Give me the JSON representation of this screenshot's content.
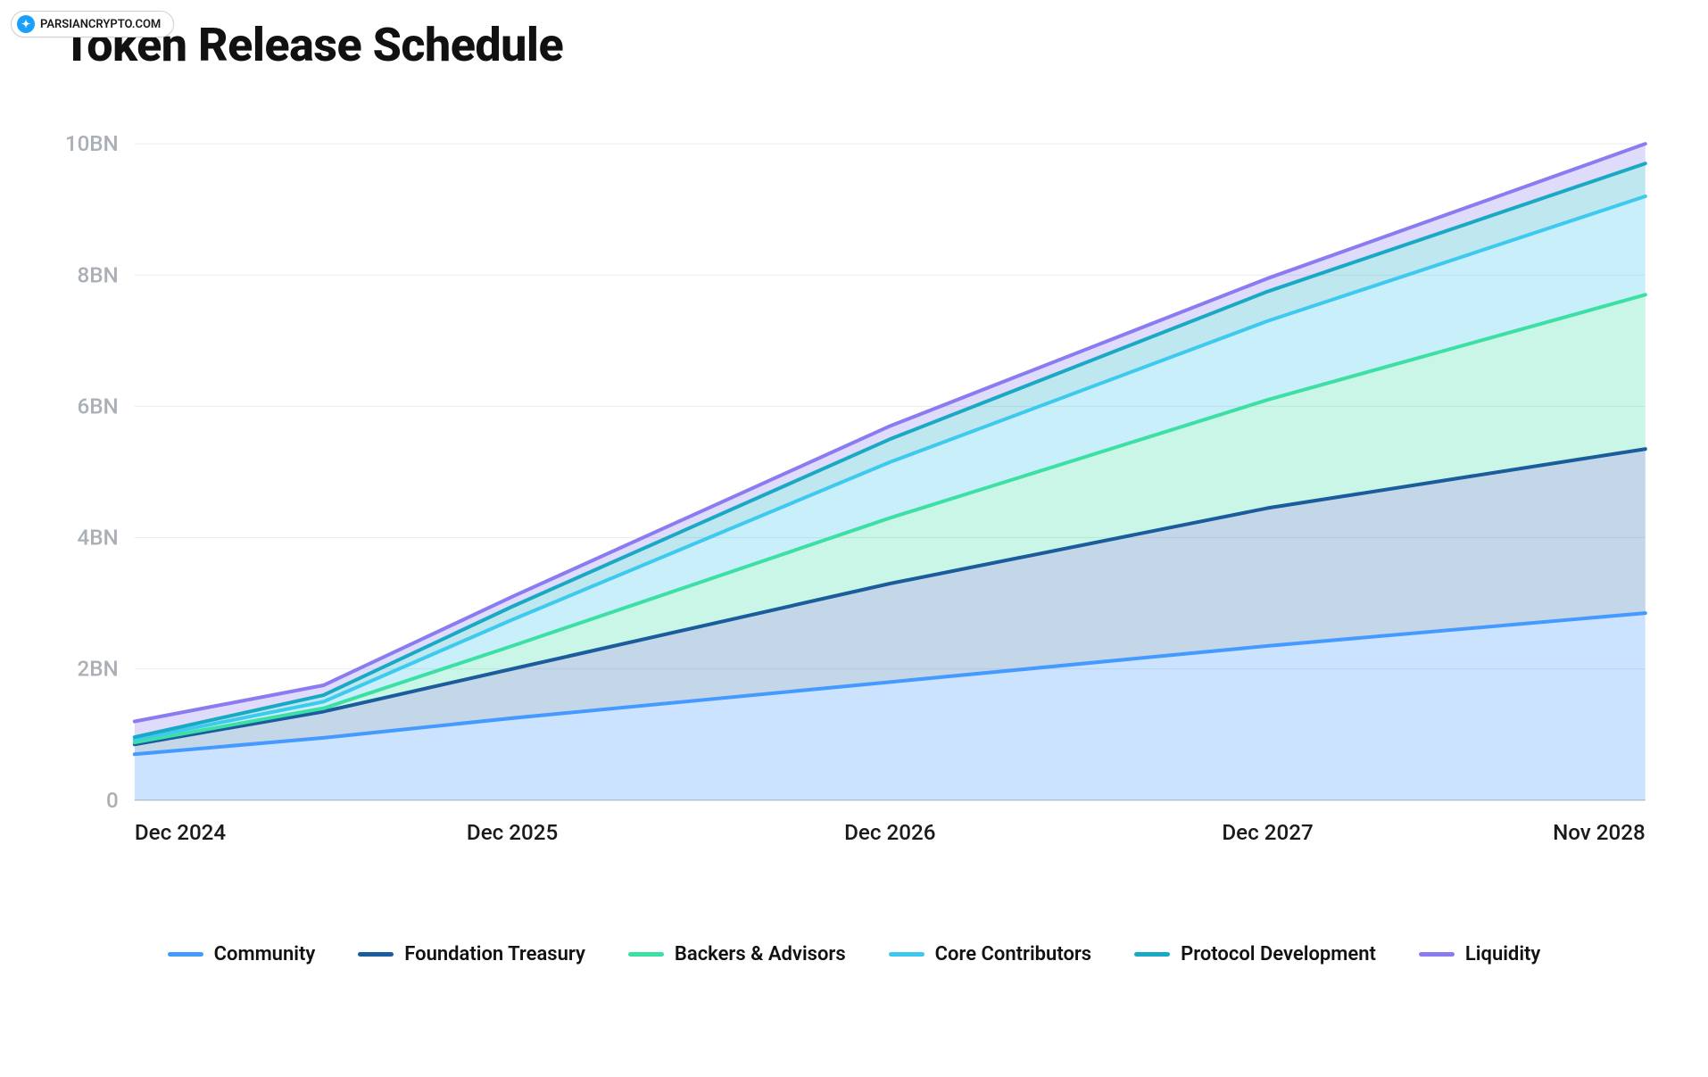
{
  "watermark": {
    "text": "PARSIANCRYPTO.COM",
    "icon_bg": "#18a0fb",
    "icon_glyph": "✦"
  },
  "chart": {
    "type": "area-stacked",
    "title": "Token Release Schedule",
    "title_fontsize": 52,
    "title_fontweight": 800,
    "background_color": "#ffffff",
    "grid_color": "#e9ecef",
    "zero_line_color": "#b0b5ba",
    "y_label_color": "#aab0b6",
    "x_label_color": "#1a1a1a",
    "tick_fontsize": 24,
    "line_width": 4,
    "fill_opacity": 0.28,
    "xlim": [
      0,
      48
    ],
    "ylim": [
      0,
      10
    ],
    "y_ticks": [
      {
        "value": 0,
        "label": "0"
      },
      {
        "value": 2,
        "label": "2BN"
      },
      {
        "value": 4,
        "label": "4BN"
      },
      {
        "value": 6,
        "label": "6BN"
      },
      {
        "value": 8,
        "label": "8BN"
      },
      {
        "value": 10,
        "label": "10BN"
      }
    ],
    "x_ticks": [
      {
        "value": 0,
        "label": "Dec 2024",
        "anchor": "start"
      },
      {
        "value": 12,
        "label": "Dec 2025",
        "anchor": "middle"
      },
      {
        "value": 24,
        "label": "Dec 2026",
        "anchor": "middle"
      },
      {
        "value": 36,
        "label": "Dec 2027",
        "anchor": "middle"
      },
      {
        "value": 48,
        "label": "Nov 2028",
        "anchor": "end"
      }
    ],
    "x_points": [
      0,
      6,
      12,
      24,
      36,
      48
    ],
    "series": [
      {
        "name": "Community",
        "color": "#449aff",
        "fill": "#449aff",
        "cum": [
          0.7,
          0.95,
          1.25,
          1.8,
          2.35,
          2.85
        ]
      },
      {
        "name": "Foundation Treasury",
        "color": "#1a5c9c",
        "fill": "#2b6fae",
        "cum": [
          0.85,
          1.35,
          2.0,
          3.3,
          4.45,
          5.35
        ]
      },
      {
        "name": "Backers & Advisors",
        "color": "#3de0a4",
        "fill": "#3de0a4",
        "cum": [
          0.88,
          1.4,
          2.35,
          4.3,
          6.1,
          7.7
        ]
      },
      {
        "name": "Core Contributors",
        "color": "#3ec9ee",
        "fill": "#3ec9ee",
        "cum": [
          0.92,
          1.5,
          2.75,
          5.15,
          7.3,
          9.2
        ]
      },
      {
        "name": "Protocol Development",
        "color": "#19a9c4",
        "fill": "#19a9c4",
        "cum": [
          0.96,
          1.6,
          2.95,
          5.5,
          7.75,
          9.7
        ]
      },
      {
        "name": "Liquidity",
        "color": "#8a7cf0",
        "fill": "#8a7cf0",
        "cum": [
          1.2,
          1.75,
          3.1,
          5.7,
          7.95,
          10.0
        ]
      }
    ]
  }
}
